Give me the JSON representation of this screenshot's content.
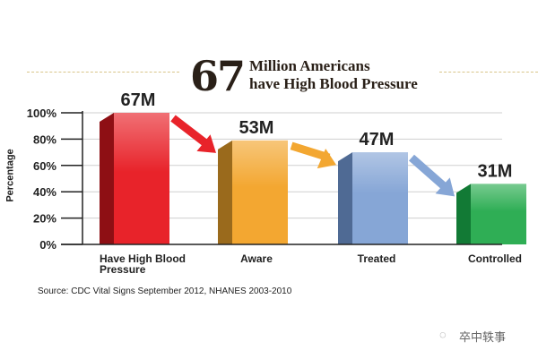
{
  "headline": {
    "number": "67",
    "line1": "Million Americans",
    "line2": "have High Blood Pressure"
  },
  "source": "Source: CDC Vital Signs September 2012, NHANES 2003-2010",
  "watermark": {
    "icon": "wechat-icon",
    "text": "卒中轶事"
  },
  "chart_data": {
    "type": "bar",
    "title": "67 Million Americans have High Blood Pressure",
    "xlabel": "",
    "ylabel": "Percentage",
    "ylim": [
      0,
      100
    ],
    "yticks": [
      "0%",
      "20%",
      "40%",
      "60%",
      "80%",
      "100%"
    ],
    "grid": true,
    "categories": [
      "Have High Blood Pressure",
      "Aware",
      "Treated",
      "Controlled"
    ],
    "category_lines": [
      [
        "Have High Blood",
        "Pressure"
      ],
      [
        "Aware"
      ],
      [
        "Treated"
      ],
      [
        "Controlled"
      ]
    ],
    "values": [
      100,
      79,
      70,
      46
    ],
    "data_labels": [
      "67M",
      "53M",
      "47M",
      "31M"
    ],
    "colors": [
      "#e8232a",
      "#f3a731",
      "#86a6d6",
      "#2fae55"
    ],
    "side_colors": [
      "#8e0f14",
      "#9a6a1c",
      "#4f6a94",
      "#127a35"
    ]
  }
}
